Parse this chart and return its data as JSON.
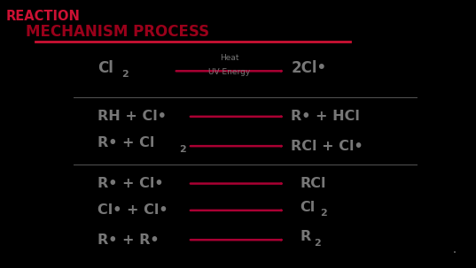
{
  "bg_color": "#000000",
  "title_reaction": "REACTION",
  "title_mechanism": "    MECHANISM PROCESS",
  "title_reaction_color": "#cc1133",
  "title_mechanism_color": "#99001a",
  "title_line_color": "#cc1133",
  "text_color": "#777777",
  "arrow_color": "#aa0033",
  "divider_color": "#555555",
  "section1": {
    "left": "Cl",
    "left_sub": "2",
    "arrow_top": "Heat",
    "arrow_bottom": "UV Energy",
    "right": "2Cl•"
  },
  "section2": [
    {
      "left": "RH + Cl•",
      "right": "R• + HCl"
    },
    {
      "left": "R• + Cl",
      "left_sub": "2",
      "right": "RCl + Cl•"
    }
  ],
  "section3": [
    {
      "left": "R• + Cl•",
      "right": "RCl"
    },
    {
      "left": "Cl• + Cl•",
      "right": "Cl",
      "right_sub": "2"
    },
    {
      "left": "R• + R•",
      "right": "R",
      "right_sub": "2"
    }
  ],
  "figsize": [
    5.37,
    3.03
  ],
  "dpi": 100
}
